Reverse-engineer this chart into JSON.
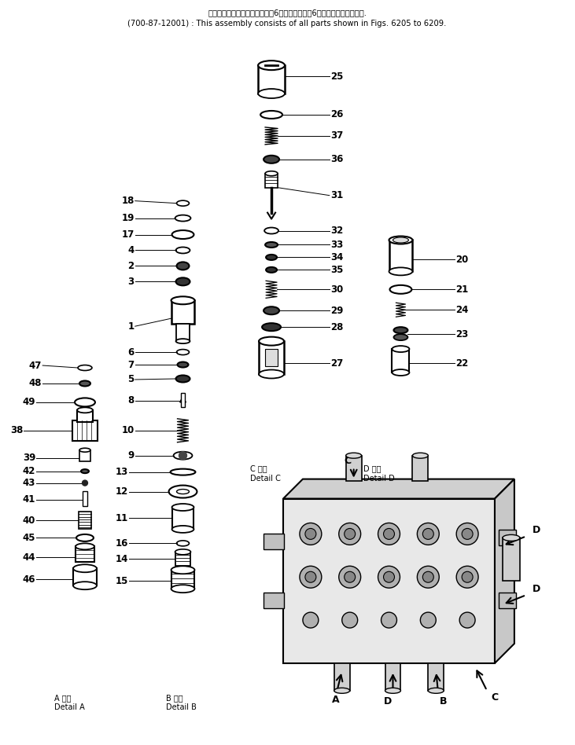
{
  "title_line1": "このアセンブリの構成部品は図6２０５図から図6２０９図まで含みます.",
  "title_line2": "(700-87-12001) : This assembly consists of all parts shown in Figs. 6205 to 6209.",
  "bg_color": "#ffffff",
  "detail_A_label": [
    "A 詳細",
    "Detail A"
  ],
  "detail_B_label": [
    "B 詳細",
    "Detail B"
  ],
  "detail_C_label": [
    "C 詳細",
    "Detail C"
  ],
  "detail_D_label": [
    "D 詳細",
    "Detail D"
  ]
}
